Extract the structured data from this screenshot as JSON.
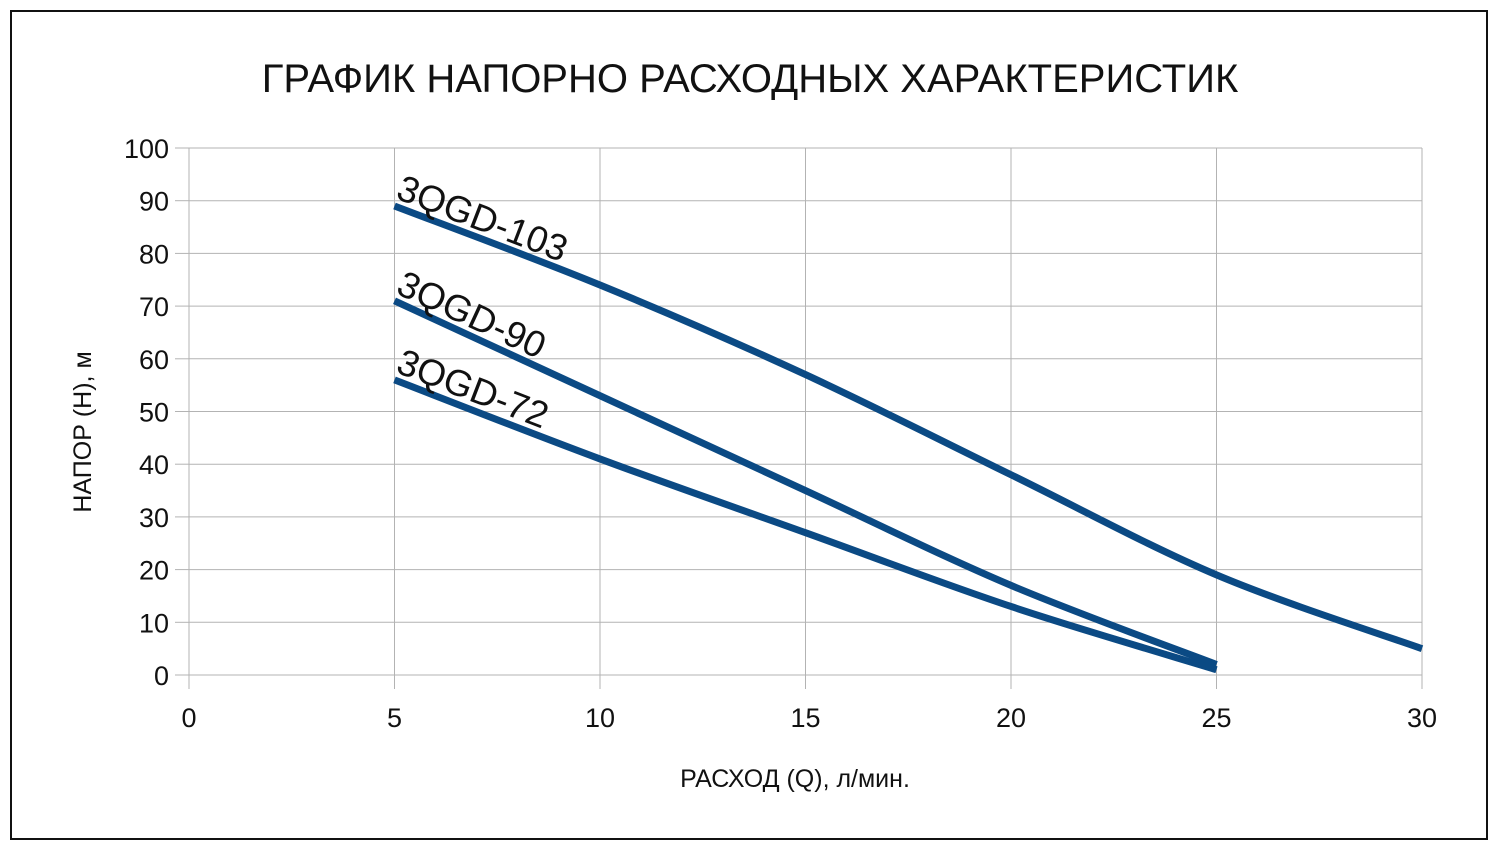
{
  "chart_data": {
    "type": "line",
    "title": "ГРАФИК НАПОРНО РАСХОДНЫХ ХАРАКТЕРИСТИК",
    "xlabel": "РАСХОД (Q), л/мин.",
    "ylabel": "НАПОР (H), м",
    "xlim": [
      0,
      30
    ],
    "ylim": [
      0,
      100
    ],
    "x_ticks": [
      "0",
      "5",
      "10",
      "15",
      "20",
      "25",
      "30"
    ],
    "y_ticks": [
      "0",
      "10",
      "20",
      "30",
      "40",
      "50",
      "60",
      "70",
      "80",
      "90",
      "100"
    ],
    "grid": true,
    "legend": "none (series labelled directly on lines)",
    "line_color": "#0b4a84",
    "series": [
      {
        "name": "3QGD-103",
        "x": [
          5,
          10,
          15,
          20,
          25,
          30
        ],
        "y": [
          89,
          74,
          57,
          38,
          19,
          5
        ]
      },
      {
        "name": "3QGD-90",
        "x": [
          5,
          10,
          15,
          20,
          25
        ],
        "y": [
          71,
          53,
          35,
          17,
          2
        ]
      },
      {
        "name": "3QGD-72",
        "x": [
          5,
          10,
          15,
          20,
          25
        ],
        "y": [
          56,
          41,
          27,
          13,
          1
        ]
      }
    ]
  }
}
